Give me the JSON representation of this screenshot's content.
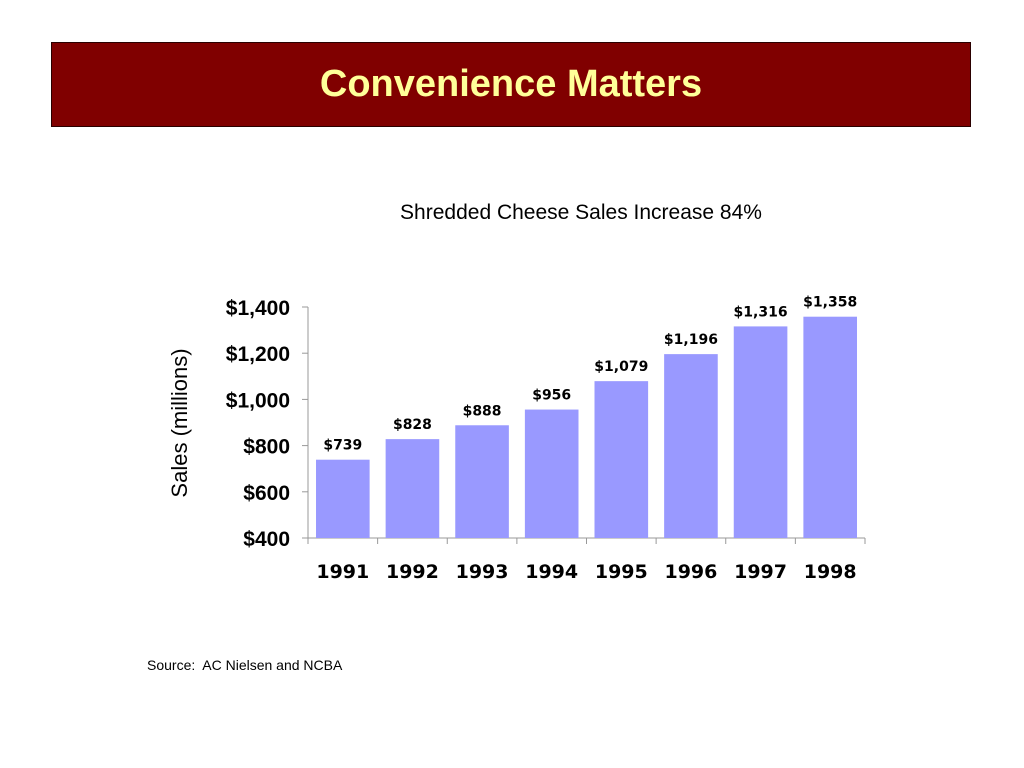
{
  "slide": {
    "title": "Convenience Matters",
    "source": "Source:  AC Nielsen and NCBA"
  },
  "colors": {
    "banner": "#800000",
    "title_text": "#ffff99",
    "bar": "#9999ff"
  },
  "chart_data": {
    "type": "bar",
    "title": "Shredded Cheese Sales Increase 84%",
    "xlabel": "",
    "ylabel": "Sales (millions)",
    "categories": [
      "1991",
      "1992",
      "1993",
      "1994",
      "1995",
      "1996",
      "1997",
      "1998"
    ],
    "values": [
      739,
      828,
      888,
      956,
      1079,
      1196,
      1316,
      1358
    ],
    "value_labels": [
      "$739",
      "$828",
      "$888",
      "$956",
      "$1,079",
      "$1,196",
      "$1,316",
      "$1,358"
    ],
    "ylim": [
      400,
      1400
    ],
    "yticks": [
      400,
      600,
      800,
      1000,
      1200,
      1400
    ],
    "ytick_labels": [
      "$400",
      "$600",
      "$800",
      "$1,000",
      "$1,200",
      "$1,400"
    ],
    "grid": false,
    "legend": "none"
  }
}
